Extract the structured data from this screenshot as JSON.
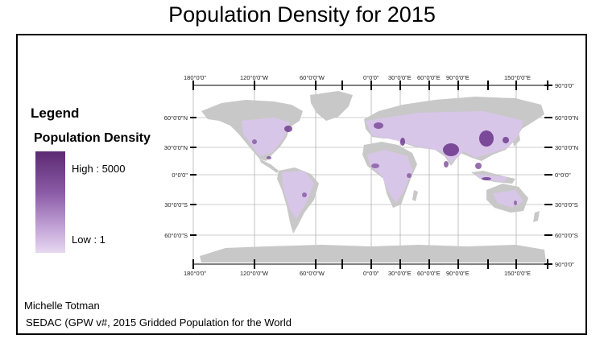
{
  "title": "Population Density for 2015",
  "legend": {
    "title": "Legend",
    "subtitle": "Population Density",
    "high_label": "High : 5000",
    "low_label": "Low : 1",
    "high_color": "#5b2a72",
    "low_color": "#e7d8f1"
  },
  "credits": {
    "author": "Michelle Totman",
    "source": "SEDAC (GPW v#, 2015 Gridded Population for the World"
  },
  "map": {
    "land_color": "#c8c8c8",
    "populated_color": "#d9c6ea",
    "dense_color": "#6a3389",
    "grid_color": "#9a9a9a",
    "top_labels": [
      "180°0'0\"",
      "120°0'0\"W",
      "60°0'0\"W",
      "0°0'0\"",
      "30°0'0\"E",
      "60°0'0\"E",
      "90°0'0\"E",
      "150°0'0\"E"
    ],
    "bottom_labels": [
      "180°0'0\"",
      "120°0'0\"W",
      "60°0'0\"W",
      "0°0'0\"",
      "30°0'0\"E",
      "60°0'0\"E",
      "90°0'0\"E",
      "150°0'0\"E"
    ],
    "left_labels": [
      "60°0'0\"N",
      "30°0'0\"N",
      "0°0'0\"",
      "30°0'0\"S",
      "60°0'0\"S"
    ],
    "right_labels": [
      "90°0'0\"",
      "60°0'0\"N",
      "30°0'0\"N",
      "0°0'0\"",
      "30°0'0\"S",
      "60°0'0\"S",
      "90°0'0\""
    ]
  }
}
